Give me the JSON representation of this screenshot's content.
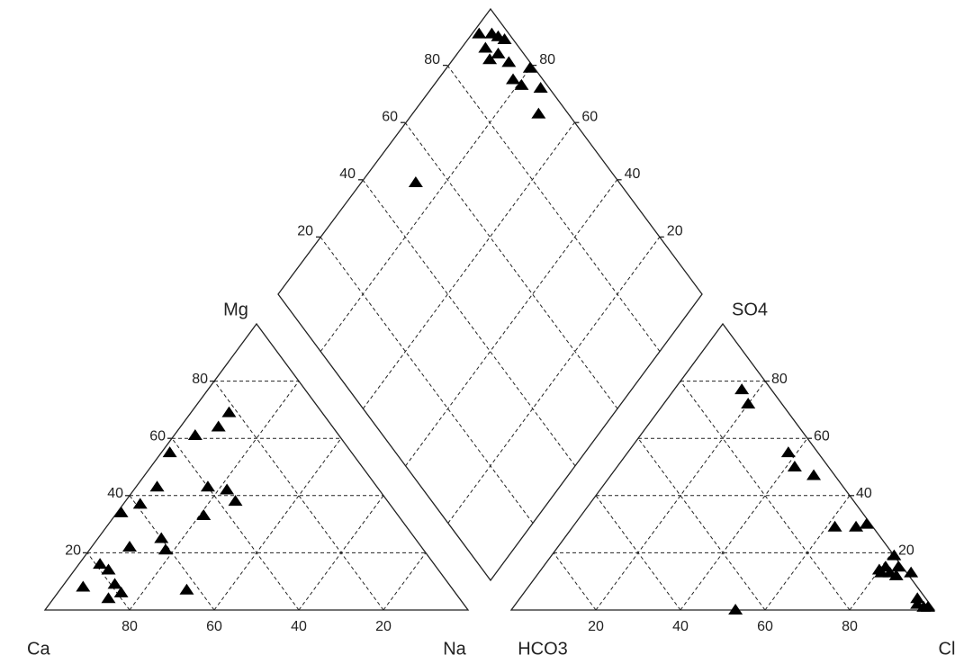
{
  "chart_data": {
    "type": "piper",
    "ticks": [
      20,
      40,
      60,
      80
    ],
    "marker_color": "#000000",
    "cations": {
      "vertices": [
        "Ca",
        "Na",
        "Mg"
      ],
      "ca": [
        22,
        27,
        34,
        43,
        52,
        59,
        65,
        40,
        36,
        36,
        46,
        60,
        61,
        69,
        79,
        78,
        87,
        79,
        79,
        83,
        63
      ],
      "mg": [
        69,
        64,
        61,
        55,
        43,
        37,
        34,
        43,
        42,
        38,
        33,
        25,
        21,
        22,
        16,
        14,
        8,
        9,
        6,
        4,
        7
      ]
    },
    "anions": {
      "vertices": [
        "HCO3",
        "Cl",
        "SO4"
      ],
      "cl": [
        16,
        20,
        38,
        42,
        48,
        62,
        67,
        69,
        81,
        80,
        83,
        84,
        88,
        85,
        94,
        97,
        98,
        53,
        81,
        95,
        81
      ],
      "so4": [
        77,
        72,
        55,
        50,
        47,
        29,
        29,
        30,
        19,
        14,
        13,
        15,
        13,
        12,
        4,
        1,
        1,
        0,
        15,
        2,
        13
      ]
    },
    "diamond": {
      "left": [
        93,
        96,
        97,
        98,
        92,
        94,
        91,
        95,
        99,
        93,
        94,
        98,
        93,
        52
      ],
      "right": [
        98,
        95,
        93,
        91,
        94,
        90,
        91,
        86,
        80,
        82,
        79,
        74,
        70,
        87
      ]
    }
  }
}
